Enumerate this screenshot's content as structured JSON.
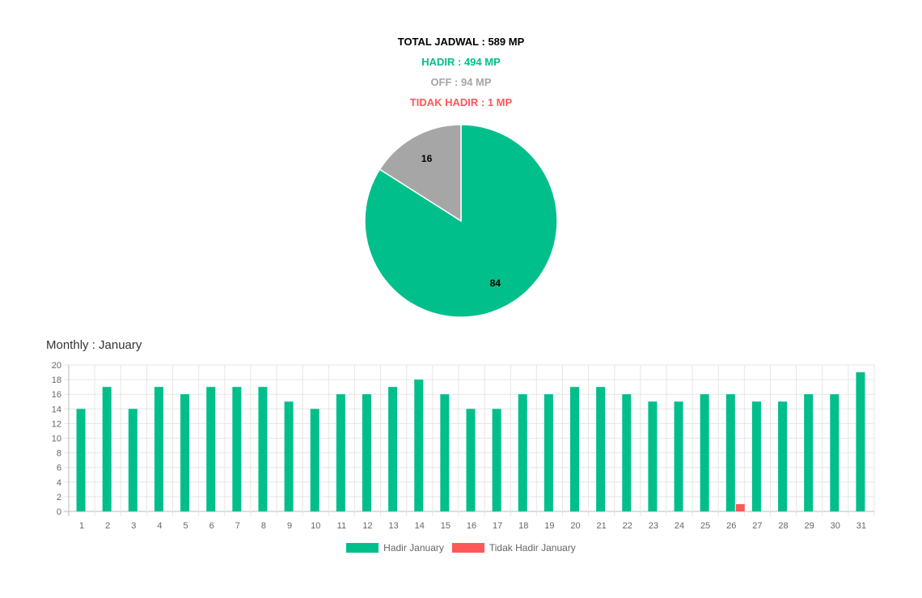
{
  "summary": {
    "total": "TOTAL JADWAL : 589 MP",
    "hadir": "HADIR : 494 MP",
    "off": "OFF : 94 MP",
    "tidak_hadir": "TIDAK HADIR : 1 MP"
  },
  "colors": {
    "total": "#000000",
    "hadir": "#00bf8b",
    "off": "#a6a6a6",
    "tidak_hadir": "#ff5858"
  },
  "monthly_title": "Monthly : January",
  "chart_data": [
    {
      "type": "pie",
      "slices": [
        {
          "value": 84,
          "label": "84",
          "color": "#00bf8b"
        },
        {
          "value": 16,
          "label": "16",
          "color": "#a6a6a6"
        }
      ]
    },
    {
      "type": "bar",
      "categories": [
        "1",
        "2",
        "3",
        "4",
        "5",
        "6",
        "7",
        "8",
        "9",
        "10",
        "11",
        "12",
        "13",
        "14",
        "15",
        "16",
        "17",
        "18",
        "19",
        "20",
        "21",
        "22",
        "23",
        "24",
        "25",
        "26",
        "27",
        "28",
        "29",
        "30",
        "31"
      ],
      "series": [
        {
          "name": "Hadir January",
          "color": "#00bf8b",
          "values": [
            14,
            17,
            14,
            17,
            16,
            17,
            17,
            17,
            15,
            14,
            16,
            16,
            17,
            18,
            16,
            14,
            14,
            16,
            16,
            17,
            17,
            16,
            15,
            15,
            16,
            16,
            15,
            15,
            16,
            16,
            19
          ]
        },
        {
          "name": "Tidak Hadir January",
          "color": "#ff5858",
          "values": [
            0,
            0,
            0,
            0,
            0,
            0,
            0,
            0,
            0,
            0,
            0,
            0,
            0,
            0,
            0,
            0,
            0,
            0,
            0,
            0,
            0,
            0,
            0,
            0,
            0,
            1,
            0,
            0,
            0,
            0,
            0
          ]
        }
      ],
      "ylim": [
        0,
        20
      ],
      "yticks": [
        "0",
        "2",
        "4",
        "6",
        "8",
        "10",
        "12",
        "14",
        "16",
        "18",
        "20"
      ],
      "grid": true,
      "legend": "bottom"
    }
  ]
}
